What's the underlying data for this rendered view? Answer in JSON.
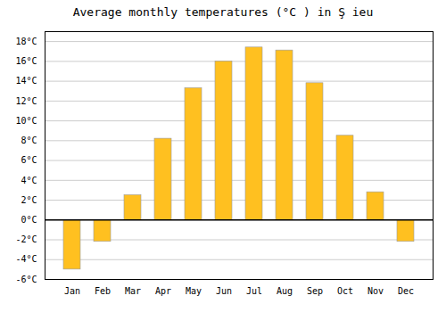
{
  "chart_data": {
    "type": "bar",
    "title": "Average monthly temperatures (°C ) in Ş ieu",
    "categories": [
      "Jan",
      "Feb",
      "Mar",
      "Apr",
      "May",
      "Jun",
      "Jul",
      "Aug",
      "Sep",
      "Oct",
      "Nov",
      "Dec"
    ],
    "values": [
      -5.0,
      -2.2,
      2.5,
      8.2,
      13.3,
      16.0,
      17.4,
      17.1,
      13.8,
      8.5,
      2.8,
      -2.2
    ],
    "color": "#FFC020",
    "ylim": [
      -6,
      19
    ],
    "yticks": [
      {
        "value": -6,
        "label": "-6°C"
      },
      {
        "value": -4,
        "label": "-4°C"
      },
      {
        "value": -2,
        "label": "-2°C"
      },
      {
        "value": 0,
        "label": "0°C"
      },
      {
        "value": 2,
        "label": "2°C"
      },
      {
        "value": 4,
        "label": "4°C"
      },
      {
        "value": 6,
        "label": "6°C"
      },
      {
        "value": 8,
        "label": "8°C"
      },
      {
        "value": 10,
        "label": "10°C"
      },
      {
        "value": 12,
        "label": "12°C"
      },
      {
        "value": 14,
        "label": "14°C"
      },
      {
        "value": 16,
        "label": "16°C"
      },
      {
        "value": 18,
        "label": "18°C"
      }
    ],
    "grid": true
  }
}
